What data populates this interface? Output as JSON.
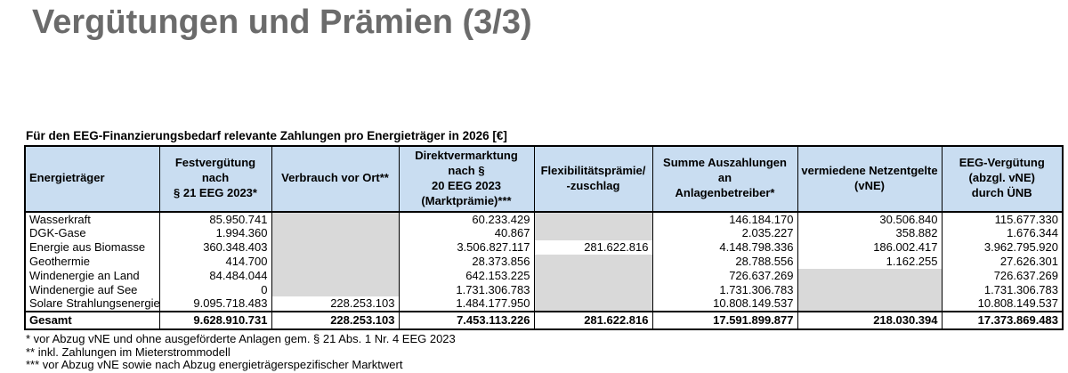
{
  "page": {
    "title": "Vergütungen und Prämien (3/3)"
  },
  "colors": {
    "header_bg": "#c9ddf1",
    "shaded_cell": "#d9d9d9",
    "title_text": "#6b6b6b"
  },
  "table": {
    "caption": "Für den EEG-Finanzierungsbedarf relevante Zahlungen pro Energieträger in 2026 [€]",
    "headers": [
      "Energieträger",
      "Festvergütung\nnach\n§ 21 EEG 2023*",
      "Verbrauch vor Ort**",
      "Direktvermarktung nach §\n20 EEG 2023\n(Marktprämie)***",
      "Flexibilitätsprämie/\n-zuschlag",
      "Summe Auszahlungen an\nAnlagenbetreiber*",
      "vermiedene Netzentgelte\n(vNE)",
      "EEG-Vergütung\n(abzgl. vNE)\ndurch ÜNB"
    ],
    "rows": [
      {
        "label": "Wasserkraft",
        "values": [
          "85.950.741",
          null,
          "60.233.429",
          null,
          "146.184.170",
          "30.506.840",
          "115.677.330"
        ]
      },
      {
        "label": "DGK-Gase",
        "values": [
          "1.994.360",
          null,
          "40.867",
          null,
          "2.035.227",
          "358.882",
          "1.676.344"
        ]
      },
      {
        "label": "Energie aus Biomasse",
        "values": [
          "360.348.403",
          null,
          "3.506.827.117",
          "281.622.816",
          "4.148.798.336",
          "186.002.417",
          "3.962.795.920"
        ]
      },
      {
        "label": "Geothermie",
        "values": [
          "414.700",
          null,
          "28.373.856",
          null,
          "28.788.556",
          "1.162.255",
          "27.626.301"
        ]
      },
      {
        "label": "Windenergie an Land",
        "values": [
          "84.484.044",
          null,
          "642.153.225",
          null,
          "726.637.269",
          null,
          "726.637.269"
        ]
      },
      {
        "label": "Windenergie auf See",
        "values": [
          "0",
          null,
          "1.731.306.783",
          null,
          "1.731.306.783",
          null,
          "1.731.306.783"
        ]
      },
      {
        "label": "Solare Strahlungsenergie",
        "values": [
          "9.095.718.483",
          "228.253.103",
          "1.484.177.950",
          null,
          "10.808.149.537",
          null,
          "10.808.149.537"
        ]
      }
    ],
    "total_row": {
      "label": "Gesamt",
      "values": [
        "9.628.910.731",
        "228.253.103",
        "7.453.113.226",
        "281.622.816",
        "17.591.899.877",
        "218.030.394",
        "17.373.869.483"
      ]
    }
  },
  "footnotes": [
    "* vor Abzug vNE und ohne ausgeförderte Anlagen gem. § 21 Abs. 1 Nr. 4 EEG 2023",
    "** inkl. Zahlungen im Mieterstrommodell",
    "*** vor Abzug vNE sowie nach Abzug energieträgerspezifischer Marktwert"
  ]
}
